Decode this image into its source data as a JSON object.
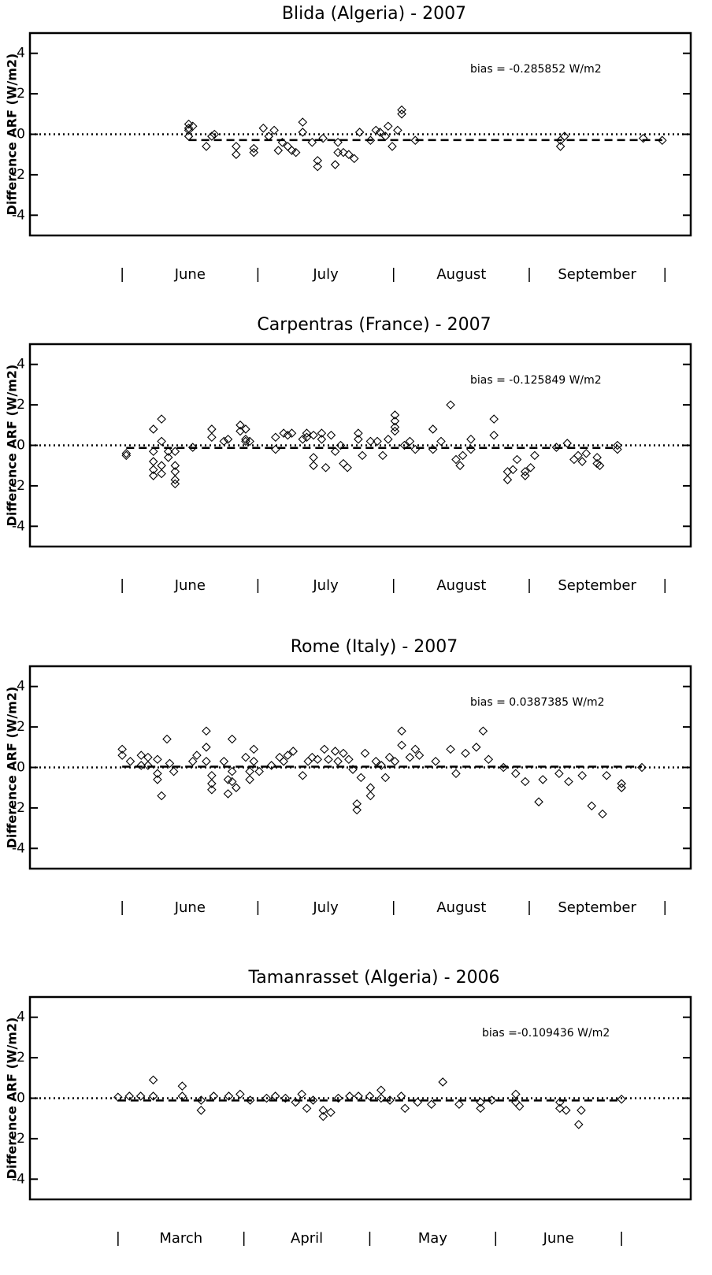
{
  "chart_data": [
    {
      "type": "scatter",
      "title": "Blida (Algeria) - 2007",
      "y_label": "Difference ARF (W/m2)",
      "annotation": "bias = -0.285852 W/m2",
      "bias": -0.285852,
      "categories": [
        "June",
        "July",
        "August",
        "September"
      ],
      "x": [
        0.49,
        0.49,
        0.49,
        0.49,
        0.52,
        0.62,
        0.66,
        0.68,
        0.84,
        0.84,
        0.97,
        0.97,
        1.04,
        1.08,
        1.12,
        1.15,
        1.18,
        1.22,
        1.25,
        1.28,
        1.33,
        1.33,
        1.4,
        1.44,
        1.44,
        1.48,
        1.57,
        1.59,
        1.59,
        1.63,
        1.67,
        1.71,
        1.75,
        1.83,
        1.87,
        1.9,
        1.94,
        1.96,
        1.99,
        2.03,
        2.06,
        2.06,
        2.16,
        3.23,
        3.23,
        3.26,
        3.84,
        3.98
      ],
      "values": [
        0.5,
        0.3,
        0.2,
        -0.1,
        0.4,
        -0.6,
        -0.1,
        0,
        -0.6,
        -1,
        -0.7,
        -0.9,
        0.3,
        -0.1,
        0.2,
        -0.8,
        -0.4,
        -0.6,
        -0.8,
        -0.9,
        0.6,
        0.1,
        -0.4,
        -1.3,
        -1.6,
        -0.2,
        -1.5,
        -0.4,
        -0.9,
        -0.9,
        -1,
        -1.2,
        0.1,
        -0.3,
        0.2,
        0.1,
        -0.1,
        0.4,
        -0.6,
        0.2,
        1.2,
        1,
        -0.3,
        -0.3,
        -0.6,
        -0.1,
        -0.2,
        -0.3
      ],
      "color": "#000000",
      "xlim": [
        -0.68,
        4.19
      ],
      "ylim": [
        -5,
        5
      ],
      "yticks": [
        -4,
        -2,
        0,
        2,
        4
      ]
    },
    {
      "type": "scatter",
      "title": "Carpentras (France) - 2007",
      "y_label": "Difference ARF (W/m2)",
      "annotation": "bias = -0.125849 W/m2",
      "bias": -0.125849,
      "categories": [
        "June",
        "July",
        "August",
        "September"
      ],
      "x": [
        0.03,
        0.03,
        0.23,
        0.23,
        0.23,
        0.23,
        0.23,
        0.29,
        0.29,
        0.29,
        0.29,
        0.34,
        0.34,
        0.39,
        0.39,
        0.39,
        0.39,
        0.39,
        0.52,
        0.66,
        0.66,
        0.75,
        0.78,
        0.87,
        0.87,
        0.91,
        0.91,
        0.91,
        0.94,
        1.13,
        1.13,
        1.19,
        1.22,
        1.25,
        1.33,
        1.36,
        1.36,
        1.41,
        1.41,
        1.41,
        1.47,
        1.47,
        1.5,
        1.54,
        1.57,
        1.61,
        1.63,
        1.66,
        1.74,
        1.74,
        1.77,
        1.83,
        1.88,
        1.92,
        1.96,
        2.01,
        2.01,
        2.01,
        2.01,
        2.08,
        2.12,
        2.16,
        2.29,
        2.29,
        2.35,
        2.42,
        2.46,
        2.49,
        2.51,
        2.57,
        2.57,
        2.74,
        2.74,
        2.84,
        2.84,
        2.88,
        2.91,
        2.97,
        2.97,
        3.01,
        3.04,
        3.2,
        3.28,
        3.33,
        3.36,
        3.39,
        3.42,
        3.5,
        3.5,
        3.52,
        3.65,
        3.65
      ],
      "values": [
        -0.4,
        -0.5,
        0.8,
        -0.3,
        -0.8,
        -1.2,
        -1.5,
        1.3,
        0.2,
        -1,
        -1.4,
        -0.3,
        -0.6,
        -0.3,
        -1,
        -1.3,
        -1.7,
        -1.9,
        -0.1,
        0.8,
        0.4,
        0.2,
        0.3,
        1,
        0.7,
        0.8,
        0.3,
        0.2,
        0.2,
        0.4,
        -0.2,
        0.6,
        0.5,
        0.6,
        0.3,
        0.6,
        0.4,
        0.5,
        -0.6,
        -1,
        0.6,
        0.3,
        -1.1,
        0.5,
        -0.3,
        0,
        -0.9,
        -1.1,
        0.6,
        0.3,
        -0.5,
        0.2,
        0.2,
        -0.5,
        0.3,
        1.5,
        1.2,
        0.9,
        0.7,
        0,
        0.2,
        -0.2,
        0.8,
        -0.2,
        0.2,
        2,
        -0.7,
        -1,
        -0.5,
        0.3,
        -0.2,
        1.3,
        0.5,
        -1.3,
        -1.7,
        -1.2,
        -0.7,
        -1.3,
        -1.5,
        -1.1,
        -0.5,
        -0.1,
        0.1,
        -0.7,
        -0.5,
        -0.8,
        -0.4,
        -0.6,
        -0.9,
        -1,
        0,
        -0.2
      ],
      "color": "#000000",
      "xlim": [
        -0.68,
        4.19
      ],
      "ylim": [
        -5,
        5
      ],
      "yticks": [
        -4,
        -2,
        0,
        2,
        4
      ]
    },
    {
      "type": "scatter",
      "title": "Rome (Italy) - 2007",
      "y_label": "Difference ARF (W/m2)",
      "annotation": "bias = 0.0387385 W/m2",
      "bias": 0.0387385,
      "categories": [
        "June",
        "July",
        "August",
        "September"
      ],
      "x": [
        0,
        0,
        0.06,
        0.14,
        0.14,
        0.19,
        0.19,
        0.26,
        0.26,
        0.26,
        0.29,
        0.33,
        0.35,
        0.38,
        0.52,
        0.55,
        0.62,
        0.62,
        0.62,
        0.66,
        0.66,
        0.66,
        0.75,
        0.78,
        0.78,
        0.81,
        0.81,
        0.81,
        0.84,
        0.91,
        0.94,
        0.94,
        0.97,
        0.97,
        1.01,
        1.1,
        1.16,
        1.19,
        1.22,
        1.26,
        1.33,
        1.37,
        1.4,
        1.44,
        1.49,
        1.52,
        1.57,
        1.59,
        1.63,
        1.67,
        1.7,
        1.73,
        1.73,
        1.76,
        1.79,
        1.83,
        1.83,
        1.87,
        1.91,
        1.94,
        1.97,
        2.01,
        2.06,
        2.06,
        2.12,
        2.16,
        2.19,
        2.31,
        2.42,
        2.46,
        2.53,
        2.61,
        2.66,
        2.7,
        2.81,
        2.9,
        2.97,
        3.07,
        3.1,
        3.22,
        3.29,
        3.39,
        3.46,
        3.54,
        3.57,
        3.68,
        3.68,
        3.83
      ],
      "values": [
        0.9,
        0.6,
        0.3,
        0.6,
        0.1,
        0.5,
        0.1,
        0.4,
        -0.3,
        -0.6,
        -1.4,
        1.4,
        0.2,
        -0.2,
        0.3,
        0.6,
        1.8,
        1,
        0.3,
        -0.4,
        -0.8,
        -1.1,
        0.3,
        -0.6,
        -1.3,
        1.4,
        -0.2,
        -0.7,
        -1,
        0.5,
        -0.2,
        -0.6,
        0.9,
        0.3,
        -0.2,
        0.1,
        0.5,
        0.3,
        0.6,
        0.8,
        -0.4,
        0.3,
        0.5,
        0.4,
        0.9,
        0.4,
        0.8,
        0.3,
        0.7,
        0.4,
        -0.1,
        -1.8,
        -2.1,
        -0.5,
        0.7,
        -1,
        -1.4,
        0.3,
        0.1,
        -0.5,
        0.5,
        0.3,
        1.8,
        1.1,
        0.5,
        0.9,
        0.6,
        0.3,
        0.9,
        -0.3,
        0.7,
        1,
        1.8,
        0.4,
        0,
        -0.3,
        -0.7,
        -1.7,
        -0.6,
        -0.3,
        -0.7,
        -0.4,
        -1.9,
        -2.3,
        -0.4,
        -0.8,
        -1,
        0
      ],
      "color": "#000000",
      "xlim": [
        -0.68,
        4.19
      ],
      "ylim": [
        -5,
        5
      ],
      "yticks": [
        -4,
        -2,
        0,
        2,
        4
      ]
    },
    {
      "type": "scatter",
      "title": "Tamanrasset (Algeria) - 2006",
      "y_label": "Difference ARF (W/m2)",
      "annotation": "bias =-0.109436  W/m2",
      "bias": -0.109436,
      "categories": [
        "March",
        "April",
        "May",
        "June"
      ],
      "x": [
        0,
        0.09,
        0.18,
        0.28,
        0.28,
        0.51,
        0.51,
        0.66,
        0.66,
        0.76,
        0.88,
        0.97,
        1.05,
        1.18,
        1.25,
        1.33,
        1.41,
        1.46,
        1.5,
        1.55,
        1.63,
        1.63,
        1.69,
        1.75,
        1.84,
        1.91,
        2,
        2.09,
        2.09,
        2.16,
        2.25,
        2.28,
        2.38,
        2.49,
        2.58,
        2.71,
        2.88,
        2.88,
        2.97,
        3.16,
        3.16,
        3.19,
        3.51,
        3.51,
        3.56,
        3.66,
        3.68,
        4
      ],
      "values": [
        0.05,
        0.1,
        0.1,
        0.1,
        0.9,
        0.6,
        0.1,
        -0.1,
        -0.6,
        0.1,
        0.1,
        0.2,
        -0.1,
        0,
        0.1,
        0,
        -0.2,
        0.2,
        -0.5,
        -0.1,
        -0.6,
        -0.9,
        -0.7,
        0,
        0.1,
        0.1,
        0.1,
        0.4,
        0,
        -0.1,
        0.1,
        -0.5,
        -0.2,
        -0.3,
        0.8,
        -0.3,
        -0.2,
        -0.5,
        -0.1,
        0.2,
        -0.2,
        -0.4,
        -0.2,
        -0.5,
        -0.6,
        -1.3,
        -0.6,
        -0.05
      ],
      "color": "#000000",
      "xlim": [
        -0.7,
        4.55
      ],
      "ylim": [
        -5,
        5
      ],
      "yticks": [
        -4,
        -2,
        0,
        2,
        4
      ]
    }
  ]
}
